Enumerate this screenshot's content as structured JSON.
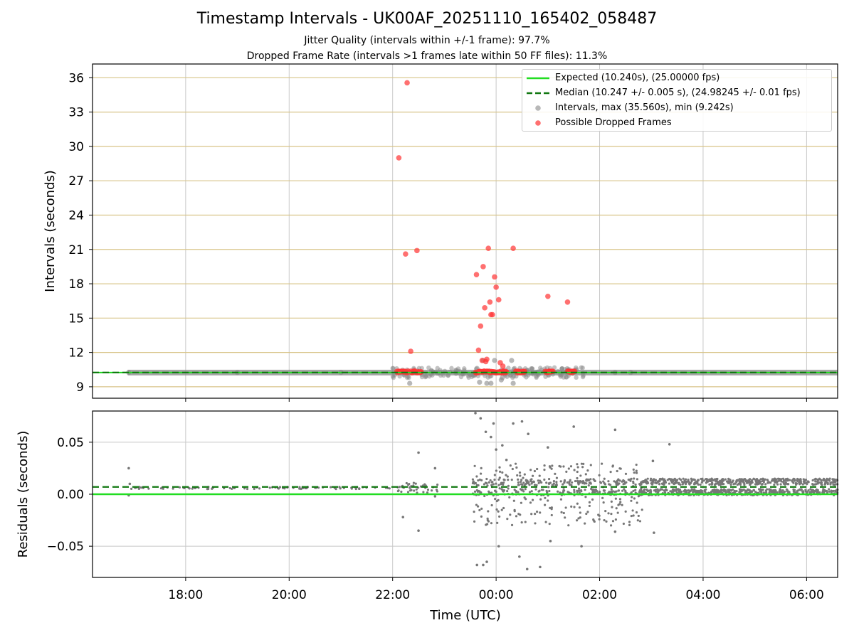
{
  "header": {
    "title": "Timestamp Intervals - UK00AF_20251110_165402_058487",
    "subtitle1": "Jitter Quality (intervals within +/-1 frame): 97.7%",
    "subtitle2": "Dropped Frame Rate (intervals >1 frames late within 50 FF files): 11.3%"
  },
  "colors": {
    "expected": "#22dd22",
    "median": "#117711",
    "intervals": "#888888",
    "dropped": "#ff3333",
    "hgrid": "#d8c488",
    "vgrid": "#c8c8c8"
  },
  "legend": {
    "expected": "Expected (10.240s), (25.00000 fps)",
    "median": "Median (10.247 +/- 0.005 s), (24.98245 +/- 0.01 fps)",
    "intervals": "Intervals, max (35.560s), min (9.242s)",
    "dropped": "Possible Dropped Frames"
  },
  "chart_data": [
    {
      "type": "scatter",
      "name": "intervals",
      "ylabel": "Intervals (seconds)",
      "ylim": [
        8.0,
        37.2
      ],
      "xlim_hours": [
        16.2,
        30.6
      ],
      "yticks": [
        9,
        12,
        15,
        18,
        21,
        24,
        27,
        30,
        33,
        36
      ],
      "ytick_labels": [
        "9",
        "12",
        "15",
        "18",
        "21",
        "24",
        "27",
        "30",
        "33",
        "36"
      ],
      "expected": 10.24,
      "median": 10.247,
      "series": [
        {
          "name": "Possible Dropped Frames",
          "x_hours": [
            22.12,
            22.28,
            22.25,
            22.47,
            22.35,
            23.62,
            23.85,
            23.75,
            24.0,
            23.7,
            23.88,
            23.97,
            23.93,
            24.33,
            23.78,
            24.05,
            23.66,
            23.9,
            23.73,
            23.82,
            24.08,
            25.0,
            25.38,
            23.8,
            24.13,
            22.2,
            22.38,
            22.55,
            23.67,
            23.8,
            23.95,
            24.15,
            24.2,
            24.45,
            24.55,
            25.02,
            25.45
          ],
          "y": [
            29.0,
            35.56,
            20.6,
            20.9,
            12.1,
            18.8,
            21.1,
            19.5,
            17.7,
            14.3,
            16.4,
            18.6,
            15.3,
            21.1,
            15.9,
            16.6,
            12.2,
            15.3,
            11.3,
            11.4,
            11.1,
            16.9,
            16.4,
            11.2,
            10.8,
            10.3,
            10.3,
            10.3,
            10.3,
            10.3,
            10.3,
            10.3,
            10.3,
            10.3,
            10.3,
            10.3,
            10.3
          ]
        },
        {
          "name": "Intervals",
          "x_hours": [
            22.33,
            23.58,
            23.68,
            23.82,
            23.9,
            23.97,
            24.1,
            24.12,
            24.33,
            23.75,
            23.63,
            24.3,
            26.3,
            26.6,
            16.9,
            19.0,
            21.0
          ],
          "y": [
            9.3,
            10.0,
            9.4,
            9.3,
            9.3,
            11.3,
            9.6,
            9.8,
            9.3,
            11.3,
            10.6,
            11.3,
            10.25,
            10.25,
            10.25,
            10.25,
            10.25
          ]
        }
      ]
    },
    {
      "type": "scatter",
      "name": "residuals",
      "xlabel": "Time (UTC)",
      "ylabel": "Residuals (seconds)",
      "ylim": [
        -0.08,
        0.08
      ],
      "xlim_hours": [
        16.2,
        30.6
      ],
      "yticks": [
        -0.05,
        0.0,
        0.05
      ],
      "ytick_labels": [
        "−0.05",
        "0.00",
        "0.05"
      ],
      "xticks_hours": [
        18,
        20,
        22,
        24,
        26,
        28,
        30
      ],
      "xtick_labels": [
        "18:00",
        "20:00",
        "22:00",
        "00:00",
        "02:00",
        "04:00",
        "06:00"
      ],
      "expected_residual": 0.0,
      "median_residual": 0.007,
      "series": [
        {
          "name": "Residuals",
          "x_hours": [
            16.9,
            16.9,
            16.92,
            22.2,
            22.5,
            22.5,
            22.82,
            22.82,
            23.6,
            23.63,
            23.7,
            23.75,
            23.8,
            23.82,
            23.9,
            23.95,
            24.0,
            24.05,
            24.12,
            24.2,
            24.33,
            24.45,
            24.5,
            24.6,
            24.62,
            24.85,
            25.0,
            25.05,
            25.5,
            25.65,
            26.3,
            26.3,
            27.03,
            27.05,
            27.35
          ],
          "y": [
            0.025,
            -0.001,
            0.01,
            -0.022,
            0.04,
            -0.035,
            0.025,
            -0.002,
            0.078,
            -0.068,
            0.073,
            -0.068,
            0.06,
            -0.065,
            0.055,
            0.068,
            0.043,
            -0.05,
            0.047,
            0.033,
            0.068,
            -0.06,
            0.07,
            -0.072,
            0.058,
            -0.07,
            0.045,
            -0.045,
            0.065,
            -0.05,
            0.062,
            -0.036,
            0.032,
            -0.037,
            0.048
          ]
        }
      ]
    }
  ]
}
